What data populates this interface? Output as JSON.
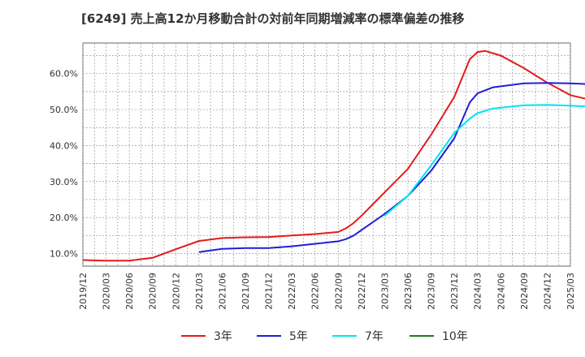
{
  "chart_data": {
    "type": "line",
    "title": "[6249]  売上高12か月移動合計の対前年同期増減率の標準偏差の推移",
    "xlabel": "",
    "ylabel": "",
    "ylim": [
      6.5,
      68.5
    ],
    "yticks": [
      10,
      20,
      30,
      40,
      50,
      60
    ],
    "ytick_labels": [
      "10.0%",
      "20.0%",
      "30.0%",
      "40.0%",
      "50.0%",
      "60.0%"
    ],
    "xticks": [
      "2019/12",
      "2020/03",
      "2020/06",
      "2020/09",
      "2020/12",
      "2021/03",
      "2021/06",
      "2021/09",
      "2021/12",
      "2022/03",
      "2022/06",
      "2022/09",
      "2022/12",
      "2023/03",
      "2023/06",
      "2023/09",
      "2023/12",
      "2024/03",
      "2024/06",
      "2024/09",
      "2024/12",
      "2025/03"
    ],
    "grid": true,
    "legend_position": "bottom",
    "series": [
      {
        "name": "3年",
        "color": "#e31a1c",
        "points": [
          [
            "2019/12",
            8.2
          ],
          [
            "2020/03",
            8.0
          ],
          [
            "2020/06",
            8.0
          ],
          [
            "2020/09",
            8.8
          ],
          [
            "2020/12",
            11.2
          ],
          [
            "2021/03",
            13.5
          ],
          [
            "2021/06",
            14.3
          ],
          [
            "2021/09",
            14.5
          ],
          [
            "2021/12",
            14.6
          ],
          [
            "2022/03",
            15.0
          ],
          [
            "2022/06",
            15.4
          ],
          [
            "2022/09",
            16.0
          ],
          [
            "2022/10",
            17.0
          ],
          [
            "2022/11",
            18.5
          ],
          [
            "2022/12",
            20.5
          ],
          [
            "2023/03",
            27.0
          ],
          [
            "2023/06",
            33.5
          ],
          [
            "2023/09",
            43.0
          ],
          [
            "2023/12",
            53.5
          ],
          [
            "2024/02",
            64.0
          ],
          [
            "2024/03",
            66.0
          ],
          [
            "2024/04",
            66.3
          ],
          [
            "2024/06",
            65.0
          ],
          [
            "2024/09",
            61.5
          ],
          [
            "2024/12",
            57.5
          ],
          [
            "2025/03",
            54.0
          ],
          [
            "2025/06",
            52.5
          ]
        ]
      },
      {
        "name": "5年",
        "color": "#1f1fd8",
        "points": [
          [
            "2021/03",
            10.4
          ],
          [
            "2021/06",
            11.3
          ],
          [
            "2021/09",
            11.5
          ],
          [
            "2021/12",
            11.5
          ],
          [
            "2022/03",
            12.0
          ],
          [
            "2022/06",
            12.7
          ],
          [
            "2022/09",
            13.4
          ],
          [
            "2022/10",
            14.0
          ],
          [
            "2022/11",
            15.0
          ],
          [
            "2022/12",
            16.5
          ],
          [
            "2023/03",
            21.0
          ],
          [
            "2023/06",
            26.0
          ],
          [
            "2023/09",
            33.0
          ],
          [
            "2023/12",
            42.0
          ],
          [
            "2024/02",
            52.0
          ],
          [
            "2024/03",
            54.5
          ],
          [
            "2024/05",
            56.2
          ],
          [
            "2024/09",
            57.3
          ],
          [
            "2024/12",
            57.4
          ],
          [
            "2025/03",
            57.3
          ],
          [
            "2025/06",
            57.0
          ]
        ]
      },
      {
        "name": "7年",
        "color": "#00e5ee",
        "points": [
          [
            "2023/03",
            20.5
          ],
          [
            "2023/06",
            26.0
          ],
          [
            "2023/09",
            34.5
          ],
          [
            "2023/12",
            43.5
          ],
          [
            "2024/02",
            47.5
          ],
          [
            "2024/03",
            49.0
          ],
          [
            "2024/05",
            50.3
          ],
          [
            "2024/09",
            51.2
          ],
          [
            "2024/12",
            51.3
          ],
          [
            "2025/03",
            51.1
          ],
          [
            "2025/06",
            50.8
          ]
        ]
      },
      {
        "name": "10年",
        "color": "#1b7f1b",
        "points": []
      }
    ]
  }
}
